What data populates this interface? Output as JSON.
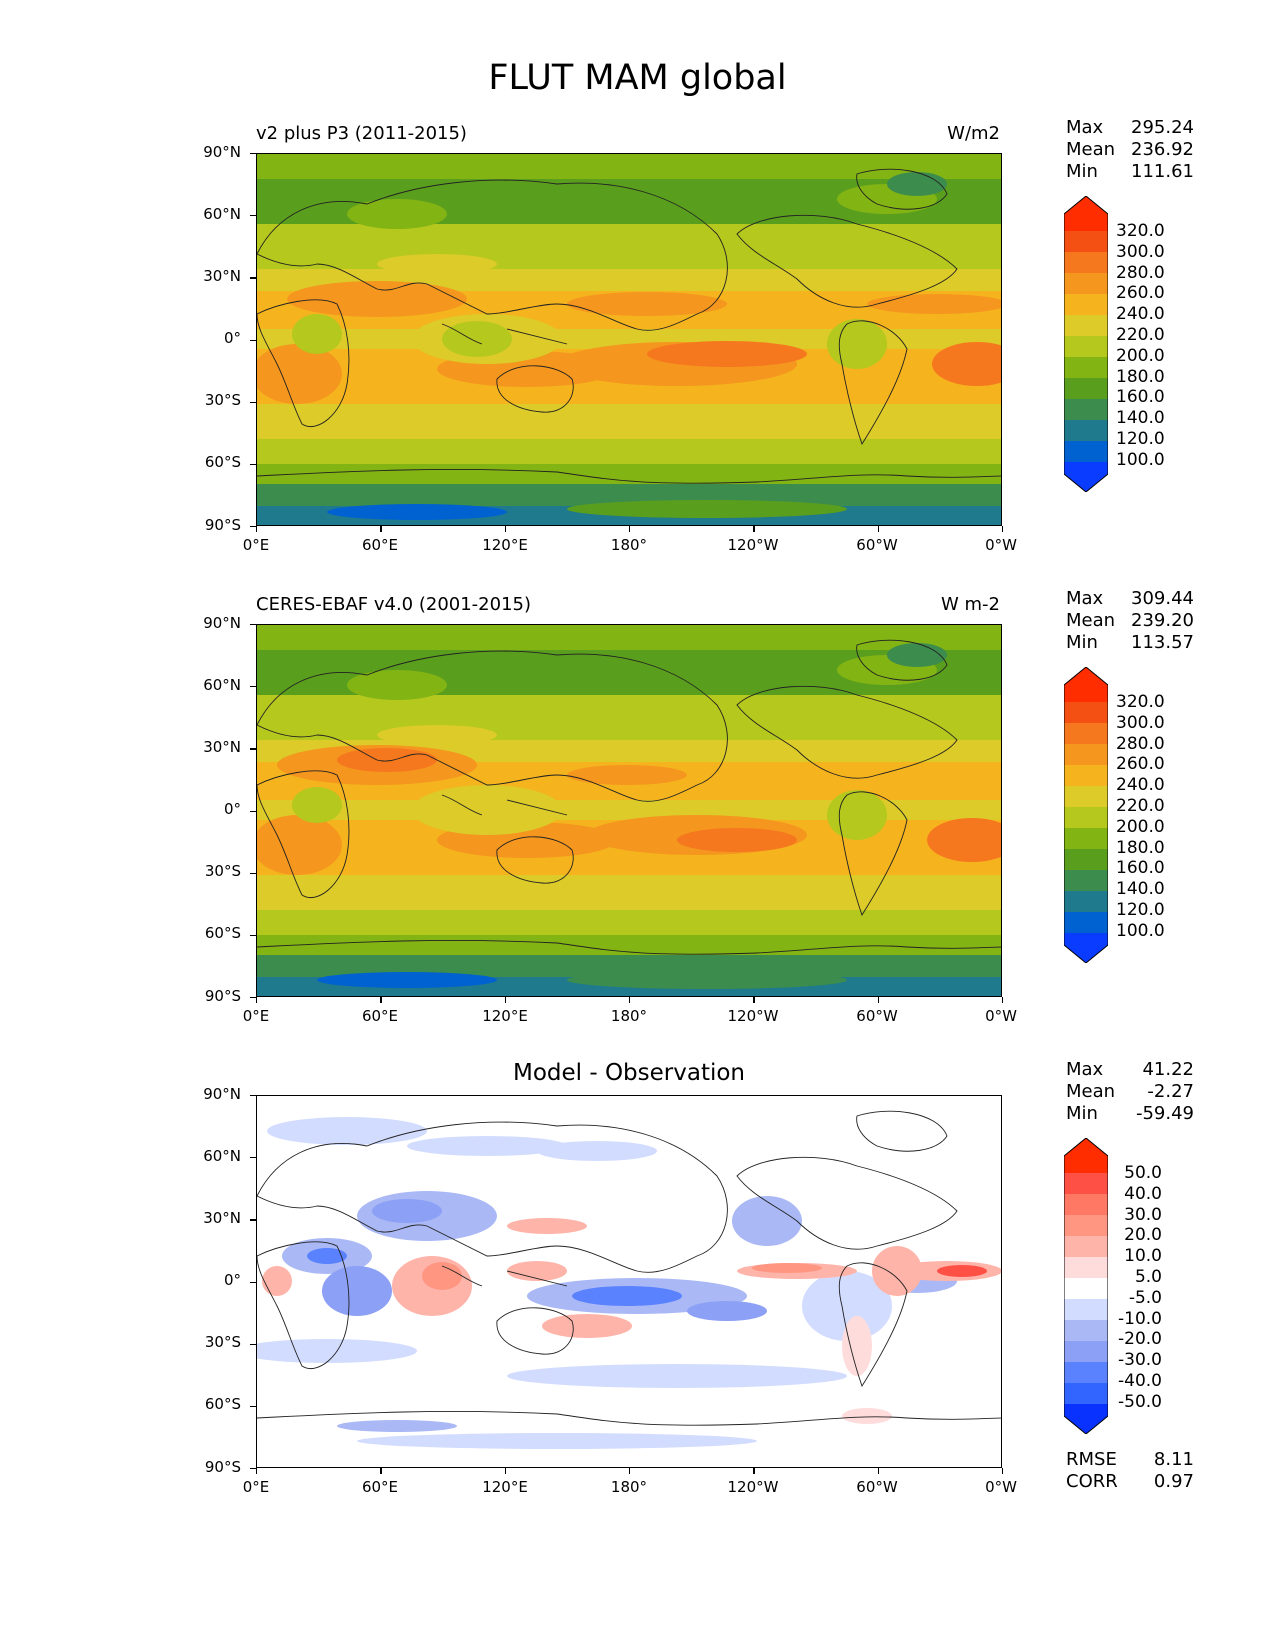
{
  "figure_title": "FLUT MAM global",
  "x_ticks": [
    "0°E",
    "60°E",
    "120°E",
    "180°",
    "120°W",
    "60°W",
    "0°W"
  ],
  "y_ticks": [
    "90°N",
    "60°N",
    "30°N",
    "0°",
    "30°S",
    "60°S",
    "90°S"
  ],
  "colors": {
    "abs_levels": [
      "#0a3cff",
      "#0062d0",
      "#1e7a8c",
      "#3c8c4e",
      "#5a9e1e",
      "#82b414",
      "#b4c81e",
      "#dccb28",
      "#f5b41e",
      "#f5961e",
      "#f5781e",
      "#f55014",
      "#ff2d00"
    ],
    "diff_levels": [
      "#0a32ff",
      "#3264ff",
      "#5a82ff",
      "#8ca0f5",
      "#aab9f5",
      "#d2dcff",
      "#ffffff",
      "#ffdcdc",
      "#ffb4aa",
      "#ff9682",
      "#ff7864",
      "#ff5046",
      "#ff2d00"
    ]
  },
  "panels": [
    {
      "left_title": "v2 plus P3 (2011-2015)",
      "right_title": "W/m2",
      "stats": [
        {
          "label": "Max",
          "value": "295.24"
        },
        {
          "label": "Mean",
          "value": "236.92"
        },
        {
          "label": "Min",
          "value": "111.61"
        }
      ],
      "colorbar_labels": [
        "320.0",
        "300.0",
        "280.0",
        "260.0",
        "240.0",
        "220.0",
        "200.0",
        "180.0",
        "160.0",
        "140.0",
        "120.0",
        "100.0"
      ]
    },
    {
      "left_title": "CERES-EBAF v4.0 (2001-2015)",
      "right_title": "W m-2",
      "stats": [
        {
          "label": "Max",
          "value": "309.44"
        },
        {
          "label": "Mean",
          "value": "239.20"
        },
        {
          "label": "Min",
          "value": "113.57"
        }
      ],
      "colorbar_labels": [
        "320.0",
        "300.0",
        "280.0",
        "260.0",
        "240.0",
        "220.0",
        "200.0",
        "180.0",
        "160.0",
        "140.0",
        "120.0",
        "100.0"
      ]
    },
    {
      "center_title": "Model - Observation",
      "stats": [
        {
          "label": "Max",
          "value": "41.22"
        },
        {
          "label": "Mean",
          "value": "-2.27"
        },
        {
          "label": "Min",
          "value": "-59.49"
        }
      ],
      "colorbar_labels": [
        "50.0",
        "40.0",
        "30.0",
        "20.0",
        "10.0",
        "5.0",
        "-5.0",
        "-10.0",
        "-20.0",
        "-30.0",
        "-40.0",
        "-50.0"
      ],
      "extra_stats": [
        {
          "label": "RMSE",
          "value": "8.11"
        },
        {
          "label": "CORR",
          "value": "0.97"
        }
      ]
    }
  ]
}
